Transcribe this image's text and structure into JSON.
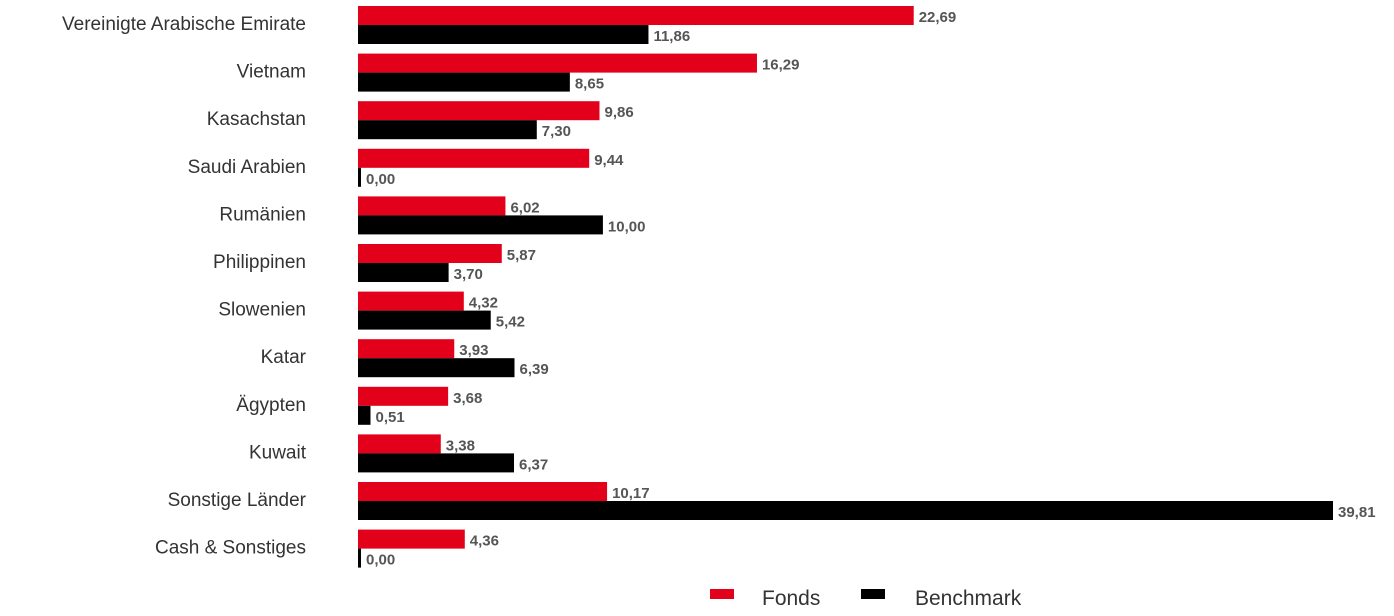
{
  "chart_data": {
    "type": "bar",
    "orientation": "horizontal",
    "categories": [
      "Vereinigte Arabische Emirate",
      "Vietnam",
      "Kasachstan",
      "Saudi Arabien",
      "Rumänien",
      "Philippinen",
      "Slowenien",
      "Katar",
      "Ägypten",
      "Kuwait",
      "Sonstige Länder",
      "Cash & Sonstiges"
    ],
    "series": [
      {
        "name": "Fonds",
        "color": "#e2001a",
        "values": [
          22.69,
          16.29,
          9.86,
          9.44,
          6.02,
          5.87,
          4.32,
          3.93,
          3.68,
          3.38,
          10.17,
          4.36
        ],
        "labels": [
          "22,69",
          "16,29",
          "9,86",
          "9,44",
          "6,02",
          "5,87",
          "4,32",
          "3,93",
          "3,68",
          "3,38",
          "10,17",
          "4,36"
        ]
      },
      {
        "name": "Benchmark",
        "color": "#000000",
        "values": [
          11.86,
          8.65,
          7.3,
          0.0,
          10.0,
          3.7,
          5.42,
          6.39,
          0.51,
          6.37,
          39.81,
          0.0
        ],
        "labels": [
          "11,86",
          "8,65",
          "7,30",
          "0,00",
          "10,00",
          "3,70",
          "5,42",
          "6,39",
          "0,51",
          "6,37",
          "39,81",
          "0,00"
        ]
      }
    ],
    "xlim": [
      0,
      39.81
    ],
    "grid": false,
    "legend": "bottom-center"
  }
}
